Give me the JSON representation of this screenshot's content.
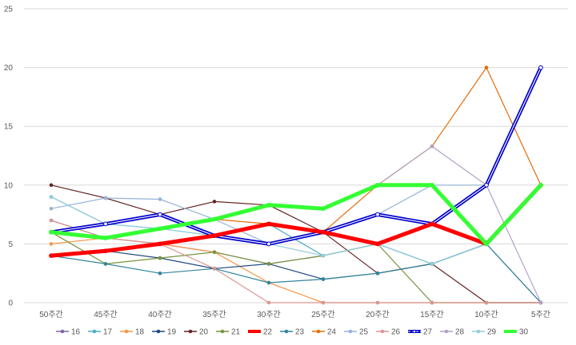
{
  "chart_data": {
    "type": "line",
    "title": "",
    "xlabel": "",
    "ylabel": "",
    "ylim": [
      0,
      25
    ],
    "y_ticks": [
      0,
      5,
      10,
      15,
      20,
      25
    ],
    "grid": true,
    "legend": "bottom",
    "categories": [
      "50주간",
      "45주간",
      "40주간",
      "35주간",
      "30주간",
      "25주간",
      "20주간",
      "15주간",
      "10주간",
      "5주간"
    ],
    "series": [
      {
        "name": "16",
        "color": "#8064A2",
        "width": 1.2,
        "values": [
          7,
          5.5,
          5,
          4.3,
          3.3,
          4,
          5,
          3.3,
          5,
          0
        ]
      },
      {
        "name": "17",
        "color": "#4BACC6",
        "width": 1.2,
        "values": [
          9,
          6.7,
          6.3,
          5.7,
          6.7,
          4,
          5,
          3.3,
          5,
          10
        ]
      },
      {
        "name": "18",
        "color": "#F79646",
        "width": 1.2,
        "values": [
          5,
          5.5,
          5,
          4.3,
          1.7,
          0,
          0,
          0,
          0,
          0
        ]
      },
      {
        "name": "19",
        "color": "#1F497D",
        "width": 1.2,
        "values": [
          4,
          4.4,
          3.8,
          2.9,
          3.3,
          2,
          2.5,
          3.3,
          5,
          10
        ]
      },
      {
        "name": "20",
        "color": "#632523",
        "width": 1.2,
        "values": [
          10,
          8.9,
          7.5,
          8.6,
          8.3,
          6,
          2.5,
          3.3,
          0,
          0
        ]
      },
      {
        "name": "21",
        "color": "#77933C",
        "width": 1.2,
        "values": [
          6,
          3.3,
          3.8,
          4.3,
          3.3,
          4,
          5,
          0,
          0,
          0
        ]
      },
      {
        "name": "22",
        "color": "#FF0000",
        "width": 5,
        "values": [
          4,
          4.4,
          5,
          5.7,
          6.7,
          6,
          5,
          6.7,
          5,
          10
        ]
      },
      {
        "name": "23",
        "color": "#31859C",
        "width": 1.2,
        "values": [
          4,
          3.3,
          2.5,
          2.9,
          1.7,
          2,
          2.5,
          3.3,
          5,
          0
        ]
      },
      {
        "name": "24",
        "color": "#E36C09",
        "width": 1.2,
        "values": [
          6,
          5.5,
          6.3,
          7.1,
          6.7,
          6,
          10,
          13.3,
          20,
          10
        ]
      },
      {
        "name": "25",
        "color": "#95B3D7",
        "width": 1.2,
        "values": [
          8,
          8.9,
          8.8,
          7.1,
          5,
          6,
          7.5,
          10,
          10,
          20
        ]
      },
      {
        "name": "26",
        "color": "#D99694",
        "width": 1.2,
        "values": [
          7,
          5.5,
          5,
          2.9,
          0,
          0,
          0,
          0,
          0,
          0
        ]
      },
      {
        "name": "27",
        "color": "#0000CC",
        "width": 4.5,
        "double": true,
        "values": [
          6,
          6.7,
          7.5,
          5.7,
          5,
          6,
          7.5,
          6.7,
          10,
          20
        ]
      },
      {
        "name": "28",
        "color": "#B2A1C7",
        "width": 1.2,
        "values": [
          6,
          5.5,
          6.3,
          7.1,
          8.3,
          8,
          10,
          13.3,
          10,
          0
        ]
      },
      {
        "name": "29",
        "color": "#92CDDC",
        "width": 1.2,
        "values": [
          9,
          6.7,
          6.3,
          5.7,
          5,
          4,
          5,
          3.3,
          5,
          10
        ]
      },
      {
        "name": "30",
        "color": "#33FF33",
        "width": 5,
        "values": [
          6,
          5.5,
          6.3,
          7.1,
          8.3,
          8,
          10,
          10,
          5,
          10
        ]
      }
    ]
  }
}
